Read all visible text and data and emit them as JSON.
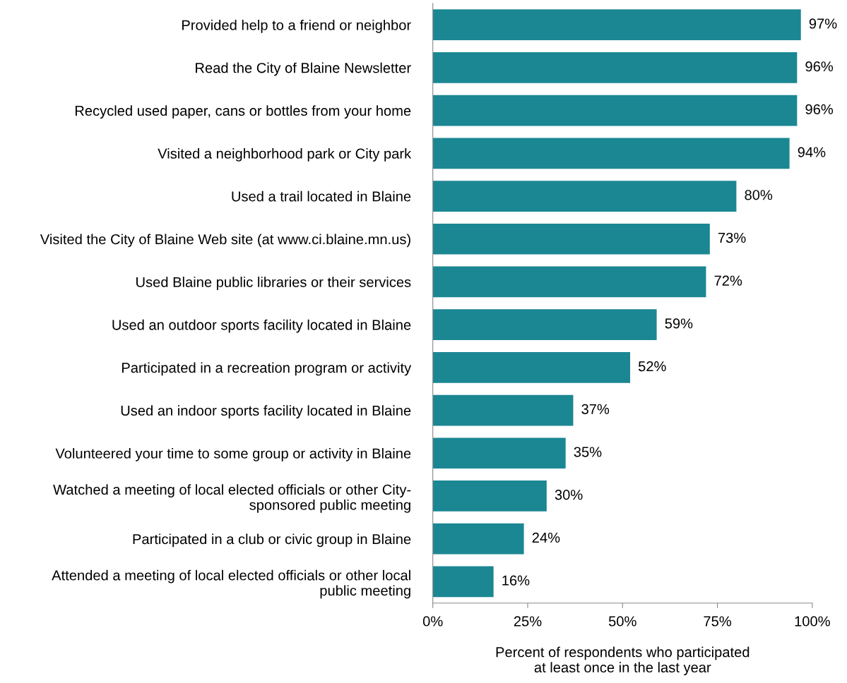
{
  "chart_data": {
    "type": "bar",
    "orientation": "horizontal",
    "categories": [
      "Provided help to a friend or neighbor",
      "Read the City of Blaine Newsletter",
      "Recycled used paper, cans or bottles from your home",
      "Visited a neighborhood park or City park",
      "Used a trail located in Blaine",
      "Visited the City of Blaine Web site (at www.ci.blaine.mn.us)",
      "Used Blaine public libraries or their services",
      "Used an outdoor sports facility located in Blaine",
      "Participated in a recreation program or activity",
      "Used an indoor sports facility located in Blaine",
      "Volunteered your time to some group or activity in Blaine",
      "Watched a meeting of local elected officials or other City-\nsponsored public meeting",
      "Participated in a club or civic group in Blaine",
      "Attended a meeting of local elected officials or other local\npublic meeting"
    ],
    "values": [
      97,
      96,
      96,
      94,
      80,
      73,
      72,
      59,
      52,
      37,
      35,
      30,
      24,
      16
    ],
    "value_labels": [
      "97%",
      "96%",
      "96%",
      "94%",
      "80%",
      "73%",
      "72%",
      "59%",
      "52%",
      "37%",
      "35%",
      "30%",
      "24%",
      "16%"
    ],
    "color": "#1b8793",
    "xlim": [
      0,
      100
    ],
    "xticks": [
      {
        "value": 0,
        "label": "0%"
      },
      {
        "value": 25,
        "label": "25%"
      },
      {
        "value": 50,
        "label": "50%"
      },
      {
        "value": 75,
        "label": "75%"
      },
      {
        "value": 100,
        "label": "100%"
      }
    ],
    "xlabel": "Percent of respondents who participated\nat least once in the last year",
    "grid": false,
    "legend": false
  }
}
